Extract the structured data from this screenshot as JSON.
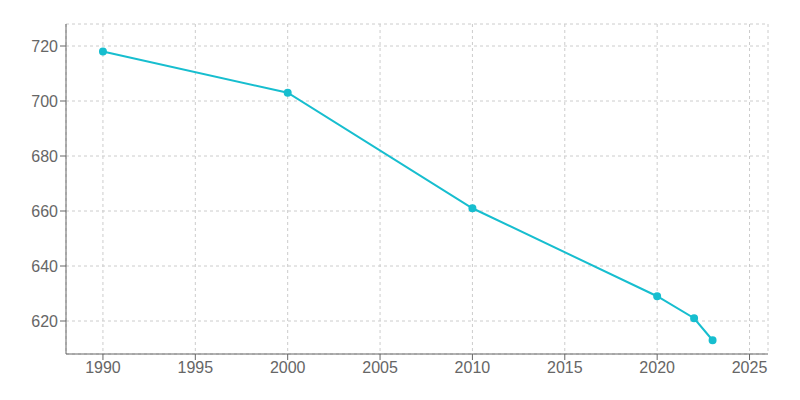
{
  "chart_data": {
    "type": "line",
    "x": [
      1990,
      2000,
      2010,
      2020,
      2022,
      2023
    ],
    "values": [
      718,
      703,
      661,
      629,
      621,
      613
    ],
    "color": "#17becf",
    "marker": "circle",
    "xlim": [
      1988,
      2026
    ],
    "ylim": [
      608,
      728
    ],
    "xticks": [
      1990,
      1995,
      2000,
      2005,
      2010,
      2015,
      2020,
      2025
    ],
    "yticks": [
      620,
      640,
      660,
      680,
      700,
      720
    ],
    "grid": true
  }
}
